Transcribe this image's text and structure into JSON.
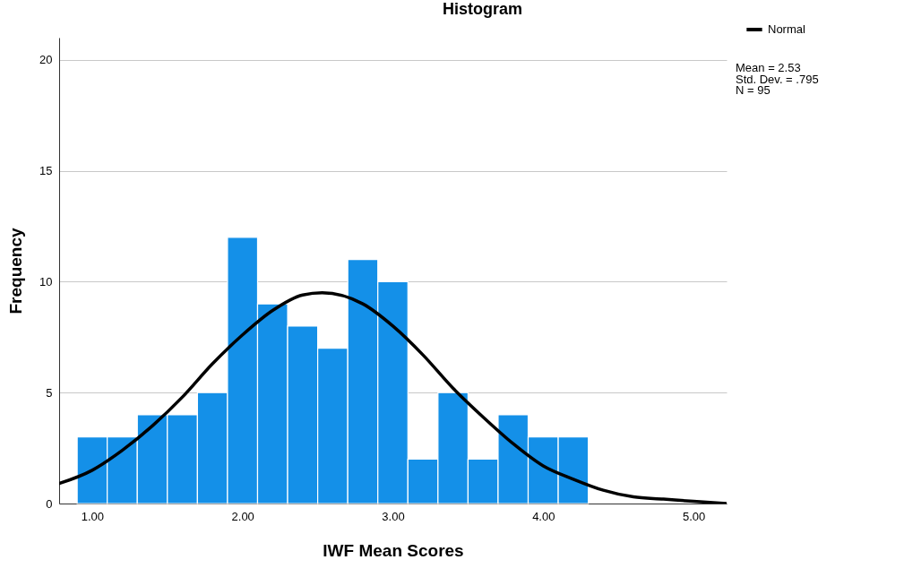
{
  "chart_data": {
    "type": "histogram",
    "title": "Histogram",
    "xlabel": "IWF Mean Scores",
    "ylabel": "Frequency",
    "bins": [
      0.9,
      1.1,
      1.3,
      1.5,
      1.7,
      1.9,
      2.1,
      2.3,
      2.5,
      2.7,
      2.9,
      3.1,
      3.3,
      3.5,
      3.7,
      3.9,
      4.1,
      4.3
    ],
    "series": [
      {
        "color": "#1490e8",
        "values": [
          3,
          3,
          4,
          4,
          5,
          12,
          9,
          8,
          7,
          11,
          10,
          2,
          5,
          2,
          4,
          3,
          3
        ]
      },
      {
        "type": "line",
        "name": "Normal",
        "color": "#000000",
        "x": [
          0.78,
          1.0,
          1.2,
          1.4,
          1.6,
          1.8,
          2.0,
          2.2,
          2.4,
          2.53,
          2.8,
          3.0,
          3.2,
          3.4,
          3.6,
          3.8,
          4.0,
          4.2,
          4.4,
          4.6,
          4.8,
          5.0,
          5.22
        ],
        "values": [
          0.9,
          1.5,
          2.4,
          3.5,
          4.8,
          6.3,
          7.6,
          8.7,
          9.4,
          9.5,
          9.0,
          8.0,
          6.7,
          5.2,
          3.9,
          2.7,
          1.7,
          1.1,
          0.6,
          0.3,
          0.2,
          0.1,
          0.0
        ]
      }
    ],
    "xlim": [
      0.78,
      5.22
    ],
    "xticks": [
      {
        "value": 1,
        "label": "1.00"
      },
      {
        "value": 2,
        "label": "2.00"
      },
      {
        "value": 3,
        "label": "3.00"
      },
      {
        "value": 4,
        "label": "4.00"
      },
      {
        "value": 5,
        "label": "5.00"
      }
    ],
    "ylim": [
      0,
      21
    ],
    "yticks": [
      0,
      5,
      10,
      15,
      20
    ],
    "grid": "y",
    "legend": "top right",
    "annotations": [
      "Mean = 2.53",
      "Std. Dev. = .795",
      "N = 95"
    ]
  }
}
